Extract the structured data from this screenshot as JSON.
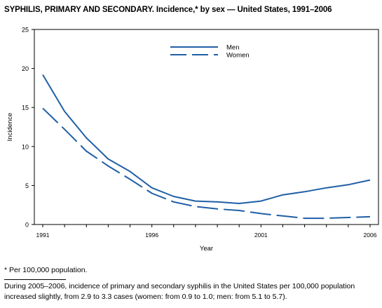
{
  "title": "SYPHILIS, PRIMARY AND SECONDARY. Incidence,* by sex — United States, 1991–2006",
  "footnote": "* Per 100,000 population.",
  "caption": "During 2005–2006, incidence of primary and secondary syphilis in the United States per 100,000 population increased slightly, from 2.9 to 3.3 cases (women: from 0.9 to 1.0; men: from 5.1 to 5.7).",
  "chart_data": {
    "type": "line",
    "title": "SYPHILIS, PRIMARY AND SECONDARY. Incidence,* by sex — United States, 1991–2006",
    "xlabel": "Year",
    "ylabel": "Incidence",
    "xlim": [
      1991,
      2006
    ],
    "ylim": [
      0,
      25
    ],
    "x_ticks": [
      1991,
      1996,
      2001,
      2006
    ],
    "y_ticks": [
      0,
      5,
      10,
      15,
      20,
      25
    ],
    "grid": false,
    "legend_position": "top-center",
    "x": [
      1991,
      1992,
      1993,
      1994,
      1995,
      1996,
      1997,
      1998,
      1999,
      2000,
      2001,
      2002,
      2003,
      2004,
      2005,
      2006
    ],
    "series": [
      {
        "name": "Men",
        "style": "solid",
        "color": "#1f5fa6",
        "values": [
          19.2,
          14.5,
          11.1,
          8.4,
          6.8,
          4.7,
          3.6,
          3.0,
          2.9,
          2.7,
          3.0,
          3.8,
          4.2,
          4.7,
          5.1,
          5.7
        ]
      },
      {
        "name": "Women",
        "style": "dashed",
        "color": "#1f5fa6",
        "values": [
          14.9,
          12.2,
          9.4,
          7.5,
          5.8,
          4.0,
          2.9,
          2.3,
          2.0,
          1.8,
          1.4,
          1.1,
          0.8,
          0.8,
          0.9,
          1.0
        ]
      }
    ]
  }
}
